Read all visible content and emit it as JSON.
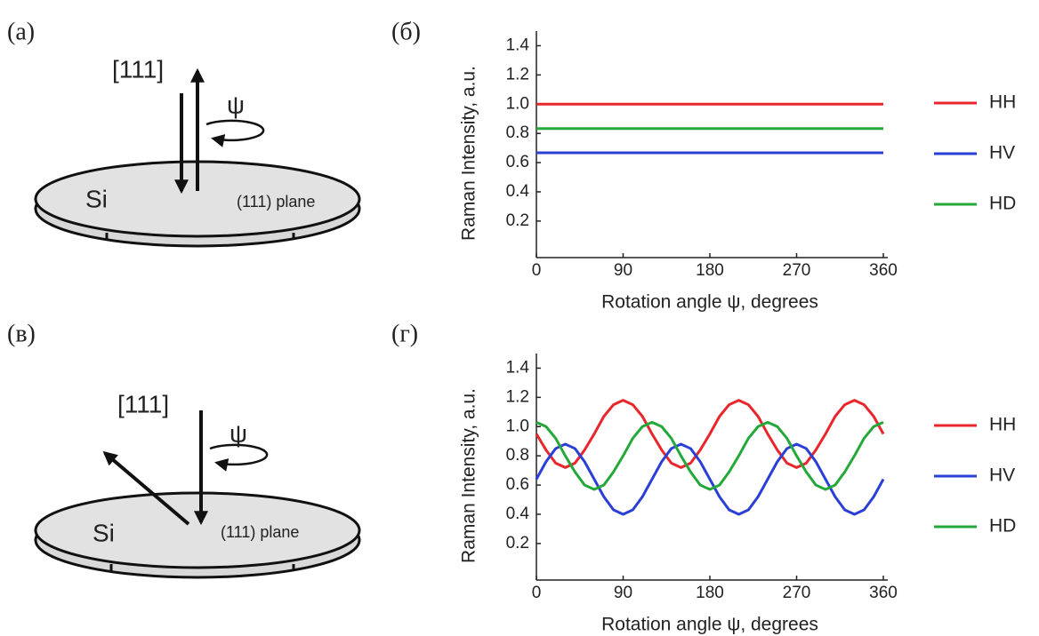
{
  "panels": [
    "(а)",
    "(б)",
    "(в)",
    "(г)"
  ],
  "diagrams": [
    {
      "axis_label": "[111]",
      "angle_label": "ψ",
      "material": "Si",
      "plane": "(111) plane"
    },
    {
      "axis_label": "[111]",
      "angle_label": "ψ",
      "material": "Si",
      "plane": "(111) plane"
    }
  ],
  "chart_data": [
    {
      "type": "line",
      "x_label": "Rotation angle ψ, degrees",
      "y_label": "Raman Intensity, a.u.",
      "x": [
        0,
        360
      ],
      "series": [
        {
          "name": "HH",
          "color": "#e8262b",
          "values": [
            1.0,
            1.0
          ]
        },
        {
          "name": "HV",
          "color": "#2a3fd6",
          "values": [
            0.667,
            0.667
          ]
        },
        {
          "name": "HD",
          "color": "#25a83a",
          "values": [
            0.833,
            0.833
          ]
        }
      ],
      "xlim": [
        0,
        360
      ],
      "xticks": [
        0,
        90,
        180,
        270,
        360
      ],
      "ylim": [
        -0.05,
        1.5
      ],
      "yticks": [
        0.2,
        0.4,
        0.6,
        0.8,
        {
          "value": 1,
          "label": "1.0"
        },
        1.2,
        1.4
      ],
      "legend": "right"
    },
    {
      "type": "line",
      "x_label": "Rotation angle ψ, degrees",
      "y_label": "Raman Intensity, a.u.",
      "x": [
        0,
        10,
        20,
        30,
        40,
        50,
        60,
        70,
        80,
        90,
        100,
        110,
        120,
        130,
        140,
        150,
        160,
        170,
        180,
        190,
        200,
        210,
        220,
        230,
        240,
        250,
        260,
        270,
        280,
        290,
        300,
        310,
        320,
        330,
        340,
        350,
        360
      ],
      "series": [
        {
          "name": "HH",
          "color": "#e8262b",
          "values": [
            0.95,
            0.84,
            0.75,
            0.72,
            0.75,
            0.84,
            0.95,
            1.07,
            1.15,
            1.18,
            1.15,
            1.07,
            0.95,
            0.84,
            0.75,
            0.72,
            0.75,
            0.84,
            0.95,
            1.07,
            1.15,
            1.18,
            1.15,
            1.07,
            0.95,
            0.84,
            0.75,
            0.72,
            0.75,
            0.84,
            0.95,
            1.07,
            1.15,
            1.18,
            1.15,
            1.07,
            0.95
          ]
        },
        {
          "name": "HV",
          "color": "#2a3fd6",
          "values": [
            0.64,
            0.76,
            0.85,
            0.88,
            0.85,
            0.76,
            0.64,
            0.52,
            0.43,
            0.4,
            0.43,
            0.52,
            0.64,
            0.76,
            0.85,
            0.88,
            0.85,
            0.76,
            0.64,
            0.52,
            0.43,
            0.4,
            0.43,
            0.52,
            0.64,
            0.76,
            0.85,
            0.88,
            0.85,
            0.76,
            0.64,
            0.52,
            0.43,
            0.4,
            0.43,
            0.52,
            0.64
          ]
        },
        {
          "name": "HD",
          "color": "#25a83a",
          "values": [
            1.03,
            1.0,
            0.92,
            0.8,
            0.69,
            0.6,
            0.57,
            0.6,
            0.69,
            0.8,
            0.92,
            1.0,
            1.03,
            1.0,
            0.92,
            0.8,
            0.69,
            0.6,
            0.57,
            0.6,
            0.69,
            0.8,
            0.92,
            1.0,
            1.03,
            1.0,
            0.92,
            0.8,
            0.69,
            0.6,
            0.57,
            0.6,
            0.69,
            0.8,
            0.92,
            1.0,
            1.03
          ]
        }
      ],
      "xlim": [
        0,
        360
      ],
      "xticks": [
        0,
        90,
        180,
        270,
        360
      ],
      "ylim": [
        -0.05,
        1.5
      ],
      "yticks": [
        0.2,
        0.4,
        0.6,
        0.8,
        {
          "value": 1,
          "label": "1.0"
        },
        1.2,
        1.4
      ],
      "legend": "right"
    }
  ]
}
